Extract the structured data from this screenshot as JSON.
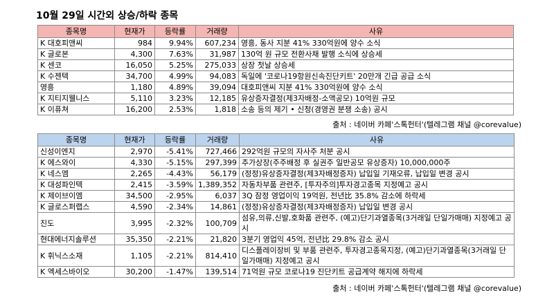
{
  "title": "10월 29일  시간외 상승/하락 종목",
  "headers": [
    "종목명",
    "현재가",
    "등락률",
    "거래량",
    "사유"
  ],
  "up": [
    {
      "name": "K 대호피앤씨",
      "price": "984",
      "rate": "9.94%",
      "volume": "607,234",
      "reason": "영흥, 동사 지분 41% 330억원에 양수 소식"
    },
    {
      "name": "K 글로본",
      "price": "4,300",
      "rate": "7.63%",
      "volume": "31,987",
      "reason": "130억 원 규모 전환사채 발행 소식에 상승세"
    },
    {
      "name": "K 센코",
      "price": "16,050",
      "rate": "5.25%",
      "volume": "275,033",
      "reason": "상장 첫날 상승세"
    },
    {
      "name": "K 수젠텍",
      "price": "34,700",
      "rate": "4.99%",
      "volume": "94,083",
      "reason": "독일에 '코로나19항원신속진단키트' 20만개 긴급 공급 소식"
    },
    {
      "name": "  영흥",
      "price": "1,180",
      "rate": "4.89%",
      "volume": "39,094",
      "reason": "대호피앤씨 지분 41% 330억원에 양수 소식"
    },
    {
      "name": "K 지티지웰니스",
      "price": "5,110",
      "rate": "3.23%",
      "volume": "12,185",
      "reason": "유상증자결정(제3자배정-소액공모) 10억원 규모"
    },
    {
      "name": "K 이퓨쳐",
      "price": "16,200",
      "rate": "2.53%",
      "volume": "1,818",
      "reason": "소송 등의 제기 • 신청(경영권 분쟁 소송) 공시"
    }
  ],
  "down": [
    {
      "name": "  신성이엔지",
      "price": "2,970",
      "rate": "-5.41%",
      "volume": "727,466",
      "reason": "292억원 규모의 자사주 처분 공시"
    },
    {
      "name": "K 에스와이",
      "price": "4,330",
      "rate": "-5.15%",
      "volume": "297,399",
      "reason": "추가상장(주주배정 후 실권주 일반공모 유상증자)   10,000,000주"
    },
    {
      "name": "K 네스엠",
      "price": "2,265",
      "rate": "-4.43%",
      "volume": "56,179",
      "reason": "(정정)유상증자결정(제3자배정증자) 납입일 기재오류, 납입일 변경 공시"
    },
    {
      "name": "K 대성파인텍",
      "price": "2,415",
      "rate": "-3.59%",
      "volume": "1,389,352",
      "reason": "자동차부품 관련주, [투자주의]투자경고종목 지정예고 공시"
    },
    {
      "name": "K 제이브이엠",
      "price": "34,500",
      "rate": "-2.95%",
      "volume": "6,037",
      "reason": "3Q 잠정 영업이익 19억원, 전년比 35.8% 감소에 하락세"
    },
    {
      "name": "K 글로스퍼랩스",
      "price": "4,590",
      "rate": "-2.34%",
      "volume": "14,861",
      "reason": "(정정)유상증자결정(제3자배정증자) 납입일 변경 공시"
    },
    {
      "name": "  진도",
      "price": "3,995",
      "rate": "-2.32%",
      "volume": "100,709",
      "reason": "섬유,의류,신발,호화품 관련주, (예고)단기과열종목(3거래일 단일가매매) 지정예고 공시"
    },
    {
      "name": "  현대에너지솔루션",
      "price": "35,350",
      "rate": "-2.21%",
      "volume": "21,820",
      "reason": "3분기 영업익 45억, 전년比 29.8% 감소 공시"
    },
    {
      "name": "K 휘닉스소재",
      "price": "1,105",
      "rate": "-2.21%",
      "volume": "814,410",
      "reason": "디스플레이장비 및 부품 관련주, 투자경고종목지정, (예고)단기과열종목(3거래일 단일가매매) 지정예고 공시"
    },
    {
      "name": "K 엑세스바이오",
      "price": "30,200",
      "rate": "-1.47%",
      "volume": "139,514",
      "reason": "71억원 규모 코로나19 진단키트 공급계약 해지에 하락세"
    }
  ],
  "source": "출처 : 네이버 카페'스톡헌터'(텔레그램 채널 @corevalue)"
}
